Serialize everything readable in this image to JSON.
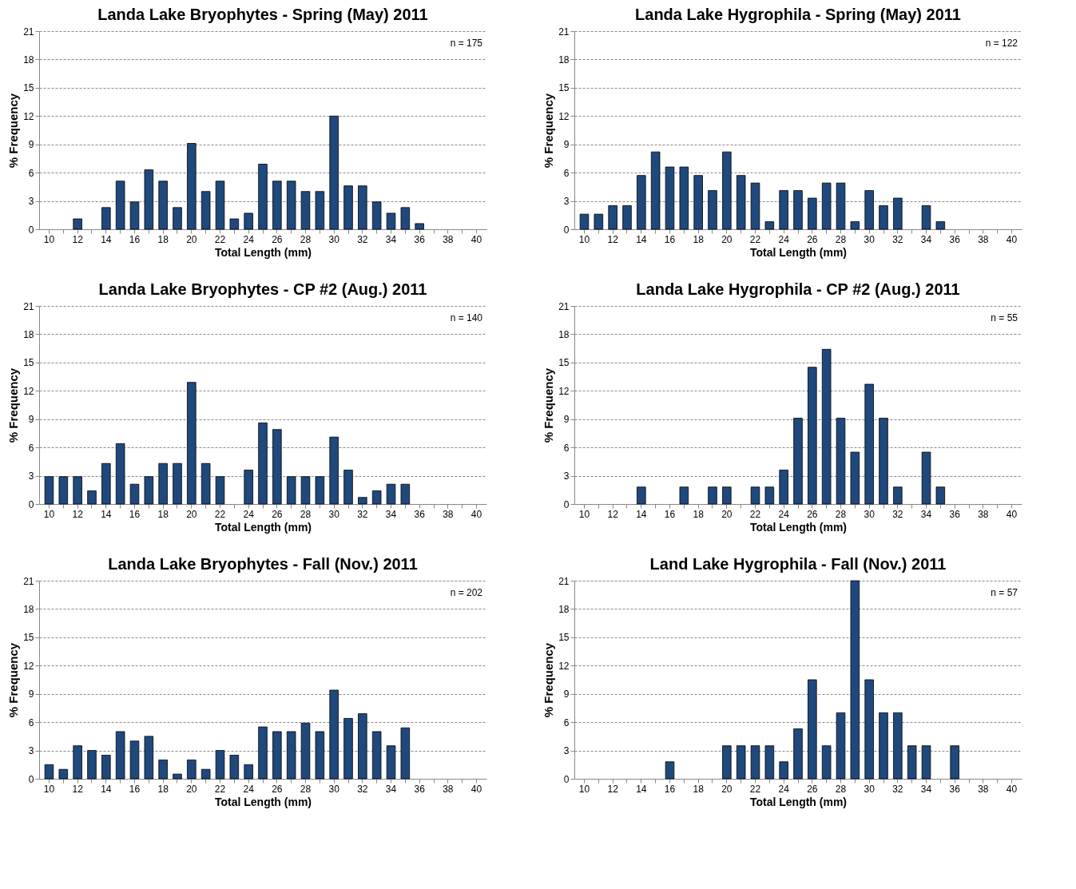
{
  "chart_data": [
    {
      "type": "bar",
      "title": "Landa Lake Bryophytes - Spring (May) 2011",
      "xlabel": "Total Length (mm)",
      "ylabel": "% Frequency",
      "annotations": [
        "n = 175"
      ],
      "color": "#1f497d",
      "grid": "y",
      "ylim": [
        0,
        21
      ],
      "yticks": [
        0,
        3,
        6,
        9,
        12,
        15,
        18,
        21
      ],
      "categories": [
        "10",
        null,
        "12",
        null,
        "14",
        null,
        "16",
        null,
        "18",
        null,
        "20",
        null,
        "22",
        null,
        "24",
        null,
        "26",
        null,
        "28",
        null,
        "30",
        null,
        "32",
        null,
        "34",
        null,
        "36",
        null,
        "38",
        null,
        "40"
      ],
      "values": [
        null,
        null,
        1.1,
        null,
        2.3,
        5.1,
        2.9,
        6.3,
        5.1,
        2.3,
        9.1,
        4.0,
        5.1,
        1.1,
        1.7,
        6.9,
        5.1,
        5.1,
        4.0,
        4.0,
        12.0,
        4.6,
        4.6,
        2.9,
        1.7,
        2.3,
        0.6,
        null,
        null,
        null,
        null
      ]
    },
    {
      "type": "bar",
      "title": "Landa Lake Hygrophila - Spring (May) 2011",
      "xlabel": "Total Length (mm)",
      "ylabel": "% Frequency",
      "annotations": [
        "n = 122"
      ],
      "color": "#1f497d",
      "grid": "y",
      "ylim": [
        0,
        21
      ],
      "yticks": [
        0,
        3,
        6,
        9,
        12,
        15,
        18,
        21
      ],
      "categories": [
        "10",
        null,
        "12",
        null,
        "14",
        null,
        "16",
        null,
        "18",
        null,
        "20",
        null,
        "22",
        null,
        "24",
        null,
        "26",
        null,
        "28",
        null,
        "30",
        null,
        "32",
        null,
        "34",
        null,
        "36",
        null,
        "38",
        null,
        "40"
      ],
      "values": [
        1.6,
        1.6,
        2.5,
        2.5,
        5.7,
        8.2,
        6.6,
        6.6,
        5.7,
        4.1,
        8.2,
        5.7,
        4.9,
        0.8,
        4.1,
        4.1,
        3.3,
        4.9,
        4.9,
        0.8,
        4.1,
        2.5,
        3.3,
        null,
        2.5,
        0.8,
        null,
        null,
        null,
        null,
        null
      ]
    },
    {
      "type": "bar",
      "title": "Landa Lake Bryophytes - CP #2 (Aug.) 2011",
      "xlabel": "Total Length (mm)",
      "ylabel": "% Frequency",
      "annotations": [
        "n = 140"
      ],
      "color": "#1f497d",
      "grid": "y",
      "ylim": [
        0,
        21
      ],
      "yticks": [
        0,
        3,
        6,
        9,
        12,
        15,
        18,
        21
      ],
      "categories": [
        "10",
        null,
        "12",
        null,
        "14",
        null,
        "16",
        null,
        "18",
        null,
        "20",
        null,
        "22",
        null,
        "24",
        null,
        "26",
        null,
        "28",
        null,
        "30",
        null,
        "32",
        null,
        "34",
        null,
        "36",
        null,
        "38",
        null,
        "40"
      ],
      "values": [
        2.9,
        2.9,
        2.9,
        1.4,
        4.3,
        6.4,
        2.1,
        2.9,
        4.3,
        4.3,
        12.9,
        4.3,
        2.9,
        null,
        3.6,
        8.6,
        7.9,
        2.9,
        2.9,
        2.9,
        7.1,
        3.6,
        0.7,
        1.4,
        2.1,
        2.1,
        null,
        null,
        null,
        null,
        null
      ]
    },
    {
      "type": "bar",
      "title": "Landa Lake Hygrophila - CP #2 (Aug.) 2011",
      "xlabel": "Total Length (mm)",
      "ylabel": "% Frequency",
      "annotations": [
        "n = 55"
      ],
      "color": "#1f497d",
      "grid": "y",
      "ylim": [
        0,
        21
      ],
      "yticks": [
        0,
        3,
        6,
        9,
        12,
        15,
        18,
        21
      ],
      "categories": [
        "10",
        null,
        "12",
        null,
        "14",
        null,
        "16",
        null,
        "18",
        null,
        "20",
        null,
        "22",
        null,
        "24",
        null,
        "26",
        null,
        "28",
        null,
        "30",
        null,
        "32",
        null,
        "34",
        null,
        "36",
        null,
        "38",
        null,
        "40"
      ],
      "values": [
        null,
        null,
        null,
        null,
        1.8,
        null,
        null,
        1.8,
        null,
        1.8,
        1.8,
        null,
        1.8,
        1.8,
        3.6,
        9.1,
        14.5,
        16.4,
        9.1,
        5.5,
        12.7,
        9.1,
        1.8,
        null,
        5.5,
        1.8,
        null,
        null,
        null,
        null,
        null
      ]
    },
    {
      "type": "bar",
      "title": "Landa Lake Bryophytes - Fall (Nov.) 2011",
      "xlabel": "Total Length (mm)",
      "ylabel": "% Frequency",
      "annotations": [
        "n = 202"
      ],
      "color": "#1f497d",
      "grid": "y",
      "ylim": [
        0,
        21
      ],
      "yticks": [
        0,
        3,
        6,
        9,
        12,
        15,
        18,
        21
      ],
      "categories": [
        "10",
        null,
        "12",
        null,
        "14",
        null,
        "16",
        null,
        "18",
        null,
        "20",
        null,
        "22",
        null,
        "24",
        null,
        "26",
        null,
        "28",
        null,
        "30",
        null,
        "32",
        null,
        "34",
        null,
        "36",
        null,
        "38",
        null,
        "40"
      ],
      "values": [
        1.5,
        1.0,
        3.5,
        3.0,
        2.5,
        5.0,
        4.0,
        4.5,
        2.0,
        0.5,
        2.0,
        1.0,
        3.0,
        2.5,
        1.5,
        5.5,
        5.0,
        5.0,
        5.9,
        5.0,
        9.4,
        6.4,
        6.9,
        5.0,
        3.5,
        5.4,
        null,
        null,
        null,
        null,
        null
      ]
    },
    {
      "type": "bar",
      "title": "Land Lake Hygrophila - Fall (Nov.) 2011",
      "xlabel": "Total Length (mm)",
      "ylabel": "% Frequency",
      "annotations": [
        "n = 57"
      ],
      "color": "#1f497d",
      "grid": "y",
      "ylim": [
        0,
        21
      ],
      "yticks": [
        0,
        3,
        6,
        9,
        12,
        15,
        18,
        21
      ],
      "categories": [
        "10",
        null,
        "12",
        null,
        "14",
        null,
        "16",
        null,
        "18",
        null,
        "20",
        null,
        "22",
        null,
        "24",
        null,
        "26",
        null,
        "28",
        null,
        "30",
        null,
        "32",
        null,
        "34",
        null,
        "36",
        null,
        "38",
        null,
        "40"
      ],
      "values": [
        null,
        null,
        null,
        null,
        null,
        null,
        1.8,
        null,
        null,
        null,
        3.5,
        3.5,
        3.5,
        3.5,
        1.8,
        5.3,
        10.5,
        3.5,
        7.0,
        21.0,
        10.5,
        7.0,
        7.0,
        3.5,
        3.5,
        null,
        3.5,
        null,
        null,
        null,
        null
      ]
    }
  ]
}
